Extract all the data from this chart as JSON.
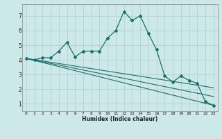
{
  "xlabel": "Humidex (Indice chaleur)",
  "bg_color": "#cce8e8",
  "grid_color": "#b8d4d4",
  "line_color": "#1a7068",
  "series": [
    {
      "x": [
        0,
        1,
        2,
        3,
        4,
        5,
        6,
        7,
        8,
        9,
        10,
        11,
        12,
        13,
        14,
        15,
        16,
        17,
        18,
        19,
        20,
        21,
        22,
        23
      ],
      "y": [
        4.1,
        4.0,
        4.15,
        4.15,
        4.6,
        5.2,
        4.2,
        4.6,
        4.6,
        4.6,
        5.5,
        6.0,
        7.3,
        6.7,
        7.0,
        5.8,
        4.7,
        2.9,
        2.5,
        2.9,
        2.6,
        2.4,
        1.15,
        0.9
      ]
    },
    {
      "x": [
        0,
        23
      ],
      "y": [
        4.1,
        0.9
      ]
    },
    {
      "x": [
        0,
        23
      ],
      "y": [
        4.1,
        1.5
      ]
    },
    {
      "x": [
        0,
        23
      ],
      "y": [
        4.1,
        2.1
      ]
    }
  ],
  "xlim": [
    -0.5,
    23.5
  ],
  "ylim": [
    0.5,
    7.8
  ],
  "yticks": [
    1,
    2,
    3,
    4,
    5,
    6,
    7
  ],
  "xticks": [
    0,
    1,
    2,
    3,
    4,
    5,
    6,
    7,
    8,
    9,
    10,
    11,
    12,
    13,
    14,
    15,
    16,
    17,
    18,
    19,
    20,
    21,
    22,
    23
  ]
}
